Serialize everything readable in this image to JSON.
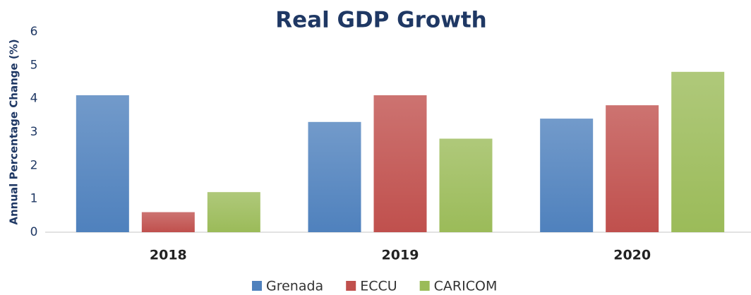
{
  "chart_data": {
    "type": "bar",
    "title": "Real GDP Growth",
    "y_label": "Annual Percentage Change (%)",
    "categories": [
      "2018",
      "2019",
      "2020"
    ],
    "series": [
      {
        "name": "Grenada",
        "color": "#4f81bd",
        "values": [
          4.1,
          3.3,
          3.4
        ]
      },
      {
        "name": "ECCU",
        "color": "#c0504d",
        "values": [
          0.6,
          4.1,
          3.8
        ]
      },
      {
        "name": "CARICOM",
        "color": "#9bbb59",
        "values": [
          1.2,
          2.8,
          4.8
        ]
      }
    ],
    "ylim": [
      0,
      6
    ],
    "yticks": [
      0,
      1,
      2,
      3,
      4,
      5,
      6
    ],
    "grid": false,
    "legend": "bottom"
  }
}
